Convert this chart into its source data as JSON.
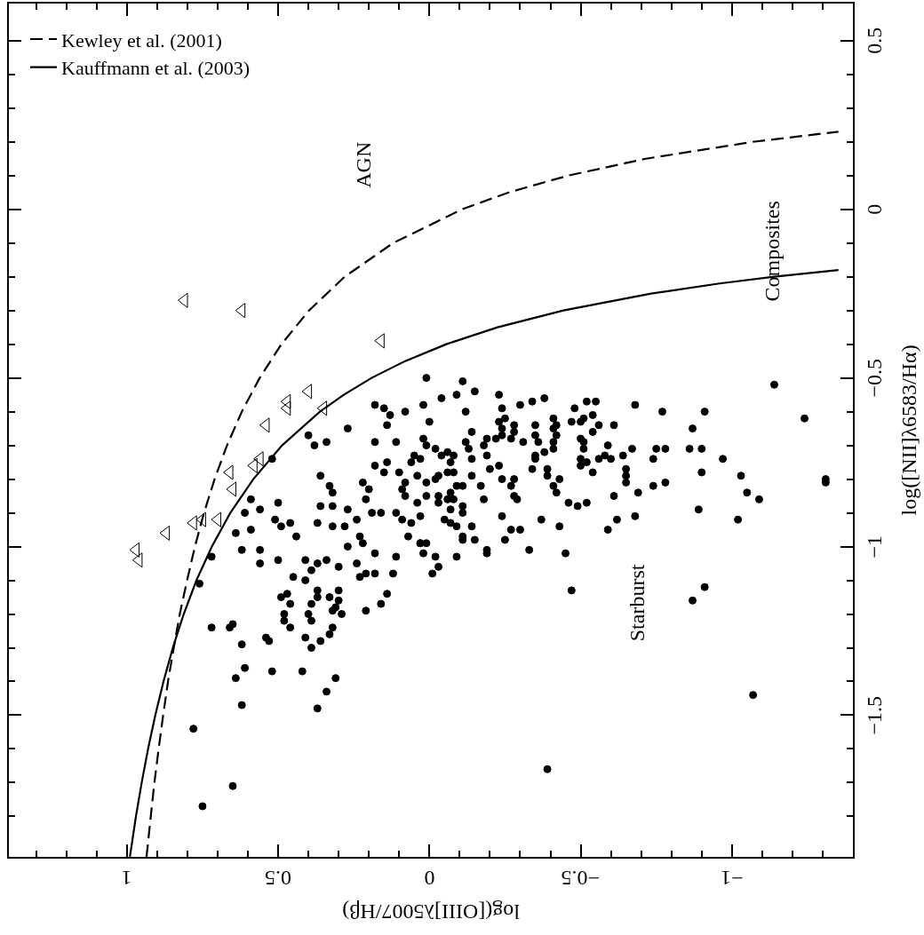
{
  "chart_data": {
    "type": "scatter",
    "xlabel": "log([OIII]λ5007/Hβ)",
    "ylabel": "log([NII]λ6583/Hα)",
    "xlim": [
      1.39,
      -1.4
    ],
    "ylim": [
      -1.92,
      0.61
    ],
    "xticks": [
      1,
      0.5,
      0,
      {
        "value": -0.5,
        "label": "−0.5"
      },
      {
        "value": -1,
        "label": "−1"
      },
      {
        "value": 1.3,
        "label": null
      },
      {
        "value": 1.2,
        "label": null
      },
      {
        "value": 1.1,
        "label": null
      },
      {
        "value": 0.9,
        "label": null
      },
      {
        "value": 0.8,
        "label": null
      },
      {
        "value": 0.7,
        "label": null
      },
      {
        "value": 0.6,
        "label": null
      },
      {
        "value": 0.4,
        "label": null
      },
      {
        "value": 0.3,
        "label": null
      },
      {
        "value": 0.2,
        "label": null
      },
      {
        "value": 0.1,
        "label": null
      },
      {
        "value": -0.1,
        "label": null
      },
      {
        "value": -0.2,
        "label": null
      },
      {
        "value": -0.3,
        "label": null
      },
      {
        "value": -0.4,
        "label": null
      },
      {
        "value": -0.6,
        "label": null
      },
      {
        "value": -0.7,
        "label": null
      },
      {
        "value": -0.8,
        "label": null
      },
      {
        "value": -0.9,
        "label": null
      },
      {
        "value": -1.1,
        "label": null
      },
      {
        "value": -1.2,
        "label": null
      },
      {
        "value": -1.3,
        "label": null
      }
    ],
    "yticks": [
      0.5,
      0,
      {
        "value": -0.5,
        "label": "−0.5"
      },
      {
        "value": -1,
        "label": "−1"
      },
      {
        "value": -1.5,
        "label": "−1.5"
      },
      {
        "value": 0.4,
        "label": null
      },
      {
        "value": 0.3,
        "label": null
      },
      {
        "value": 0.2,
        "label": null
      },
      {
        "value": 0.1,
        "label": null
      },
      {
        "value": -0.1,
        "label": null
      },
      {
        "value": -0.2,
        "label": null
      },
      {
        "value": -0.3,
        "label": null
      },
      {
        "value": -0.4,
        "label": null
      },
      {
        "value": -0.6,
        "label": null
      },
      {
        "value": -0.7,
        "label": null
      },
      {
        "value": -0.8,
        "label": null
      },
      {
        "value": -0.9,
        "label": null
      },
      {
        "value": -1.1,
        "label": null
      },
      {
        "value": -1.2,
        "label": null
      },
      {
        "value": -1.3,
        "label": null
      },
      {
        "value": -1.4,
        "label": null
      },
      {
        "value": -1.6,
        "label": null
      },
      {
        "value": -1.7,
        "label": null
      },
      {
        "value": -1.8,
        "label": null
      }
    ],
    "grid": false,
    "legend": "top left",
    "annotations": [
      "AGN",
      "Composites",
      "Starburst"
    ],
    "series": [
      {
        "name": "Kewley et al. (2001)",
        "type": "line",
        "color": "#000000",
        "line_style": "dashed",
        "marker": "none",
        "x": [
          0.935,
          0.921,
          0.909,
          0.895,
          0.88,
          0.864,
          0.845,
          0.825,
          0.801,
          0.775,
          0.745,
          0.71,
          0.669,
          0.62,
          0.561,
          0.489,
          0.398,
          0.28,
          0.12,
          -0.108,
          -0.262,
          -0.459,
          -0.716,
          -1.069,
          -1.352
        ],
        "values": [
          -1.92,
          -1.8,
          -1.7,
          -1.6,
          -1.5,
          -1.4,
          -1.3,
          -1.2,
          -1.1,
          -1.0,
          -0.9,
          -0.8,
          -0.7,
          -0.6,
          -0.5,
          -0.4,
          -0.3,
          -0.2,
          -0.1,
          0.0,
          0.05,
          0.1,
          0.15,
          0.2,
          0.23
        ]
      },
      {
        "name": "Kauffmann et al. (2003)",
        "type": "line",
        "color": "#000000",
        "line_style": "solid",
        "marker": "none",
        "x": [
          0.99,
          0.97,
          0.951,
          0.93,
          0.906,
          0.879,
          0.848,
          0.812,
          0.77,
          0.719,
          0.658,
          0.582,
          0.487,
          0.362,
          0.283,
          0.191,
          0.08,
          -0.056,
          -0.225,
          -0.443,
          -0.733,
          -0.959,
          -1.14,
          -1.352
        ],
        "values": [
          -1.92,
          -1.8,
          -1.7,
          -1.6,
          -1.5,
          -1.4,
          -1.3,
          -1.2,
          -1.1,
          -1.0,
          -0.9,
          -0.8,
          -0.7,
          -0.6,
          -0.55,
          -0.5,
          -0.45,
          -0.4,
          -0.35,
          -0.3,
          -0.25,
          -0.22,
          -0.2,
          -0.18
        ]
      },
      {
        "color": "#000000",
        "marker": "circle",
        "x": [
          0.52,
          0.4,
          0.38,
          0.34,
          0.27,
          0.18,
          0.15,
          0.13,
          0.08,
          0.14,
          0.18,
          0.11,
          0.18,
          0.14,
          0.15,
          0.1,
          0.36,
          0.33,
          0.32,
          0.59,
          0.5,
          0.61,
          0.56,
          0.51,
          0.49,
          0.46,
          0.36,
          0.32,
          0.37,
          0.32,
          0.27,
          0.22,
          0.2,
          0.21,
          0.19,
          0.16,
          0.64,
          0.59,
          0.44,
          0.62,
          0.56,
          0.56,
          0.5,
          0.72,
          0.76,
          0.41,
          0.37,
          0.34,
          0.3,
          0.28,
          0.24,
          0.23,
          0.27,
          0.22,
          0.18,
          0.18,
          0.21,
          0.24,
          0.23,
          0.11,
          0.12,
          0.45,
          0.41,
          0.39,
          0.47,
          0.49,
          0.46,
          0.37,
          0.37,
          0.39,
          0.33,
          0.3,
          0.3,
          0.31,
          0.29,
          0.32,
          0.48,
          0.48,
          0.46,
          0.4,
          0.39,
          0.32,
          0.14,
          0.16,
          0.21,
          0.72,
          0.65,
          0.66,
          0.62,
          0.54,
          0.53,
          0.41,
          0.36,
          0.33,
          0.39,
          0.61,
          0.52,
          0.42,
          0.64,
          0.31,
          0.34,
          0.62,
          0.37,
          0.78,
          0.65,
          0.75,
          0.05,
          0.06,
          0.04,
          0.08,
          0.09,
          0.08,
          0.04,
          0.11,
          0.09,
          0.06,
          0.03,
          0.07,
          0.01,
          -0.11,
          -0.09,
          -0.15,
          -0.04,
          0.02,
          -0.12,
          0.0,
          -0.23,
          -0.24,
          -0.3,
          -0.34,
          -0.38,
          -0.48,
          -0.52,
          -0.55,
          -0.68,
          -0.77,
          -0.91,
          -1.14,
          -1.24,
          -1.31,
          -1.31,
          -0.87,
          -0.86,
          -0.9,
          -0.97,
          -1.03,
          -1.05,
          -1.09,
          -1.02,
          -0.89,
          -0.9,
          -0.78,
          -0.75,
          -0.74,
          -0.74,
          -0.78,
          -0.69,
          -0.68,
          -0.62,
          -0.59,
          -0.61,
          -0.65,
          -0.65,
          -0.65,
          -0.64,
          -0.67,
          -0.59,
          -0.58,
          -0.6,
          -0.61,
          -0.56,
          -0.54,
          -0.54,
          -0.51,
          -0.5,
          -0.47,
          -0.5,
          -0.51,
          -0.51,
          -0.5,
          -0.52,
          -0.5,
          -0.56,
          -0.54,
          -0.52,
          -0.49,
          -0.46,
          -0.41,
          -0.42,
          -0.41,
          -0.42,
          -0.41,
          -0.41,
          -0.35,
          -0.35,
          -0.36,
          -0.38,
          -0.35,
          -0.35,
          -0.34,
          -0.39,
          -0.39,
          -0.43,
          -0.41,
          -0.42,
          -0.37,
          -0.43,
          -0.45,
          -0.33,
          -0.47,
          -0.39,
          -0.87,
          -0.91,
          -1.07,
          -0.31,
          -0.28,
          -0.27,
          -0.28,
          -0.25,
          -0.23,
          -0.24,
          -0.24,
          -0.22,
          -0.19,
          -0.18,
          -0.19,
          -0.2,
          -0.23,
          -0.24,
          -0.28,
          -0.27,
          -0.28,
          -0.29,
          -0.17,
          -0.18,
          -0.24,
          -0.27,
          -0.3,
          -0.25,
          -0.19,
          -0.19,
          -0.15,
          -0.11,
          -0.11,
          -0.14,
          -0.09,
          -0.02,
          -0.03,
          -0.01,
          0.02,
          0.01,
          0.03,
          -0.05,
          0.03,
          -0.07,
          -0.09,
          -0.11,
          -0.11,
          -0.07,
          -0.06,
          -0.08,
          -0.03,
          -0.03,
          0.01,
          0.01,
          -0.02,
          -0.03,
          -0.06,
          -0.08,
          -0.14,
          -0.11,
          -0.09,
          -0.07,
          -0.07,
          -0.08,
          -0.06,
          -0.04,
          -0.02,
          0.01,
          0.02,
          0.03,
          -0.14,
          -0.13,
          -0.12,
          -0.14
        ],
        "values": [
          -0.74,
          -0.67,
          -0.7,
          -0.69,
          -0.65,
          -0.58,
          -0.59,
          -0.61,
          -0.6,
          -0.64,
          -0.69,
          -0.69,
          -0.76,
          -0.75,
          -0.78,
          -0.78,
          -0.79,
          -0.82,
          -0.84,
          -0.86,
          -0.87,
          -0.9,
          -0.89,
          -0.92,
          -0.94,
          -0.93,
          -0.88,
          -0.88,
          -0.93,
          -0.94,
          -0.89,
          -0.81,
          -0.83,
          -0.86,
          -0.9,
          -0.9,
          -0.96,
          -0.95,
          -0.97,
          -1.01,
          -1.01,
          -1.05,
          -1.04,
          -1.03,
          -1.11,
          -1.04,
          -1.05,
          -1.04,
          -1.06,
          -0.94,
          -0.92,
          -0.97,
          -1.0,
          -0.99,
          -1.02,
          -1.08,
          -1.08,
          -1.05,
          -1.09,
          -1.03,
          -1.08,
          -1.09,
          -1.1,
          -1.07,
          -1.14,
          -1.15,
          -1.17,
          -1.13,
          -1.15,
          -1.17,
          -1.15,
          -1.13,
          -1.16,
          -1.18,
          -1.2,
          -1.19,
          -1.2,
          -1.22,
          -1.24,
          -1.2,
          -1.22,
          -1.24,
          -1.14,
          -1.17,
          -1.19,
          -1.24,
          -1.23,
          -1.24,
          -1.29,
          -1.27,
          -1.28,
          -1.27,
          -1.28,
          -1.26,
          -1.3,
          -1.36,
          -1.37,
          -1.37,
          -1.39,
          -1.39,
          -1.43,
          -1.47,
          -1.48,
          -1.54,
          -1.71,
          -1.77,
          -0.73,
          -0.75,
          -0.79,
          -0.81,
          -0.83,
          -0.85,
          -0.87,
          -0.9,
          -0.92,
          -0.93,
          -0.99,
          -0.97,
          -0.5,
          -0.51,
          -0.55,
          -0.54,
          -0.56,
          -0.58,
          -0.6,
          -0.63,
          -0.55,
          -0.59,
          -0.58,
          -0.57,
          -0.56,
          -0.59,
          -0.57,
          -0.57,
          -0.58,
          -0.6,
          -0.6,
          -0.52,
          -0.62,
          -0.8,
          -0.81,
          -0.65,
          -0.71,
          -0.71,
          -0.74,
          -0.79,
          -0.84,
          -0.86,
          -0.92,
          -0.89,
          -0.78,
          -0.71,
          -0.71,
          -0.74,
          -0.82,
          -0.81,
          -0.84,
          -0.91,
          -0.92,
          -0.95,
          -0.85,
          -0.77,
          -0.79,
          -0.81,
          -0.73,
          -0.71,
          -0.7,
          -0.73,
          -0.74,
          -0.64,
          -0.64,
          -0.61,
          -0.66,
          -0.62,
          -0.63,
          -0.63,
          -0.68,
          -0.69,
          -0.71,
          -0.74,
          -0.75,
          -0.76,
          -0.74,
          -0.78,
          -0.87,
          -0.88,
          -0.87,
          -0.62,
          -0.64,
          -0.65,
          -0.67,
          -0.69,
          -0.71,
          -0.64,
          -0.67,
          -0.69,
          -0.72,
          -0.73,
          -0.74,
          -0.77,
          -0.77,
          -0.79,
          -0.8,
          -0.82,
          -0.84,
          -0.92,
          -0.94,
          -1.02,
          -1.01,
          -1.13,
          -1.66,
          -1.16,
          -1.12,
          -1.44,
          -0.69,
          -0.66,
          -0.68,
          -0.64,
          -0.62,
          -0.63,
          -0.65,
          -0.67,
          -0.68,
          -0.68,
          -0.7,
          -0.73,
          -0.77,
          -0.76,
          -0.8,
          -0.8,
          -0.82,
          -0.85,
          -0.86,
          -0.82,
          -0.86,
          -0.91,
          -0.95,
          -0.95,
          -0.98,
          -1.01,
          -1.02,
          -0.98,
          -0.97,
          -0.98,
          -0.94,
          -1.03,
          -1.03,
          -1.06,
          -1.08,
          -1.02,
          -0.99,
          -0.99,
          -0.92,
          -0.91,
          -0.93,
          -0.94,
          -0.9,
          -0.88,
          -0.89,
          -0.86,
          -0.86,
          -0.87,
          -0.85,
          -0.85,
          -0.81,
          -0.8,
          -0.79,
          -0.78,
          -0.78,
          -0.79,
          -0.82,
          -0.82,
          -0.84,
          -0.75,
          -0.73,
          -0.72,
          -0.73,
          -0.71,
          -0.7,
          -0.68,
          -0.74,
          -0.74,
          -0.71,
          -0.69,
          -0.66
        ]
      },
      {
        "color": "#000000",
        "marker": "triangle",
        "x": [
          0.81,
          0.62,
          0.16,
          0.4,
          0.47,
          0.47,
          0.35,
          0.54,
          0.56,
          0.58,
          0.66,
          0.65,
          0.75,
          0.78,
          0.7,
          0.87,
          0.97,
          0.96
        ],
        "values": [
          -0.27,
          -0.3,
          -0.39,
          -0.54,
          -0.57,
          -0.59,
          -0.59,
          -0.64,
          -0.74,
          -0.76,
          -0.78,
          -0.83,
          -0.92,
          -0.93,
          -0.92,
          -0.96,
          -1.01,
          -1.04
        ]
      }
    ]
  }
}
